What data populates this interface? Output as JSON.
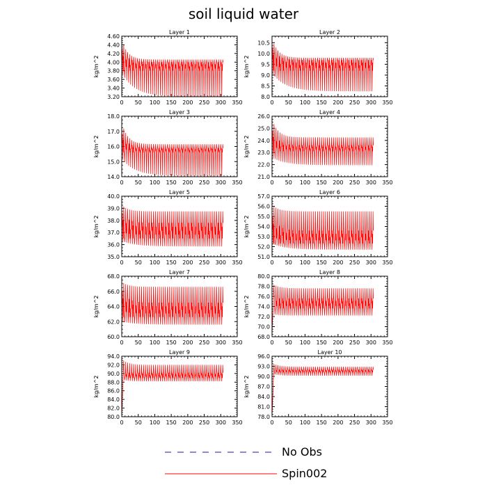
{
  "title": "soil liquid water",
  "legend": [
    {
      "label": "No Obs",
      "color": "#1a1a99",
      "dash": true
    },
    {
      "label": "Spin002",
      "color": "#ff0000",
      "dash": false
    }
  ],
  "chart_data": [
    {
      "type": "line",
      "title": "Layer 1",
      "ylabel": "kg/m^2",
      "xlim": [
        0,
        350
      ],
      "ylim": [
        3.2,
        4.6
      ],
      "yticks": [
        "3.20",
        "3.40",
        "3.60",
        "3.80",
        "4.00",
        "4.20",
        "4.40",
        "4.60"
      ],
      "xticks": [
        "0",
        "50",
        "100",
        "150",
        "200",
        "250",
        "300",
        "350"
      ],
      "series": [
        {
          "name": "Spin002",
          "color": "#ff0000",
          "x_start": 0,
          "x_end": 307,
          "start": 4.52,
          "upper": 4.06,
          "lower": 3.2,
          "mid_hi": 4.0,
          "mid_lo": 3.8,
          "lower_start": 3.75,
          "peak_period": 6
        }
      ]
    },
    {
      "type": "line",
      "title": "Layer 2",
      "ylabel": "kg/m^2",
      "xlim": [
        0,
        350
      ],
      "ylim": [
        8.0,
        10.8
      ],
      "yticks": [
        "8.0",
        "8.5",
        "9.0",
        "9.5",
        "10.0",
        "10.5"
      ],
      "xticks": [
        "0",
        "50",
        "100",
        "150",
        "200",
        "250",
        "300",
        "350"
      ],
      "series": [
        {
          "name": "Spin002",
          "color": "#ff0000",
          "x_start": 0,
          "x_end": 307,
          "start": 10.72,
          "upper": 9.8,
          "lower": 8.25,
          "mid_hi": 9.7,
          "mid_lo": 9.2,
          "lower_start": 9.1,
          "peak_period": 6
        }
      ]
    },
    {
      "type": "line",
      "title": "Layer 3",
      "ylabel": "kg/m^2",
      "xlim": [
        0,
        350
      ],
      "ylim": [
        14.0,
        18.0
      ],
      "yticks": [
        "14.0",
        "15.0",
        "16.0",
        "17.0",
        "18.0"
      ],
      "xticks": [
        "0",
        "50",
        "100",
        "150",
        "200",
        "250",
        "300",
        "350"
      ],
      "series": [
        {
          "name": "Spin002",
          "color": "#ff0000",
          "x_start": 0,
          "x_end": 307,
          "start": 17.6,
          "upper": 16.15,
          "lower": 14.05,
          "mid_hi": 15.9,
          "mid_lo": 15.6,
          "lower_start": 15.2,
          "peak_period": 6
        }
      ]
    },
    {
      "type": "line",
      "title": "Layer 4",
      "ylabel": "kg/m^2",
      "xlim": [
        0,
        350
      ],
      "ylim": [
        21.0,
        26.0
      ],
      "yticks": [
        "21.0",
        "22.0",
        "23.0",
        "24.0",
        "25.0",
        "26.0"
      ],
      "xticks": [
        "0",
        "50",
        "100",
        "150",
        "200",
        "250",
        "300",
        "350"
      ],
      "series": [
        {
          "name": "Spin002",
          "color": "#ff0000",
          "x_start": 0,
          "x_end": 307,
          "start": 25.8,
          "upper": 24.25,
          "lower": 21.95,
          "mid_hi": 23.6,
          "mid_lo": 23.1,
          "lower_start": 22.6,
          "peak_period": 6
        }
      ]
    },
    {
      "type": "line",
      "title": "Layer 5",
      "ylabel": "kg/m^2",
      "xlim": [
        0,
        350
      ],
      "ylim": [
        35.0,
        40.0
      ],
      "yticks": [
        "35.0",
        "36.0",
        "37.0",
        "38.0",
        "39.0",
        "40.0"
      ],
      "xticks": [
        "0",
        "50",
        "100",
        "150",
        "200",
        "250",
        "300",
        "350"
      ],
      "series": [
        {
          "name": "Spin002",
          "color": "#ff0000",
          "x_start": 0,
          "x_end": 307,
          "start": 39.3,
          "upper": 38.75,
          "lower": 35.85,
          "mid_hi": 37.8,
          "mid_lo": 36.5,
          "lower_start": 36.3,
          "peak_period": 6
        }
      ]
    },
    {
      "type": "line",
      "title": "Layer 6",
      "ylabel": "kg/m^2",
      "xlim": [
        0,
        350
      ],
      "ylim": [
        51.0,
        57.0
      ],
      "yticks": [
        "51.0",
        "52.0",
        "53.0",
        "54.0",
        "55.0",
        "56.0",
        "57.0"
      ],
      "xticks": [
        "0",
        "50",
        "100",
        "150",
        "200",
        "250",
        "300",
        "350"
      ],
      "series": [
        {
          "name": "Spin002",
          "color": "#ff0000",
          "x_start": 0,
          "x_end": 307,
          "start": 56.2,
          "upper": 55.5,
          "lower": 51.7,
          "mid_hi": 53.6,
          "mid_lo": 52.3,
          "lower_start": 52.3,
          "peak_period": 6
        }
      ]
    },
    {
      "type": "line",
      "title": "Layer 7",
      "ylabel": "kg/m^2",
      "xlim": [
        0,
        350
      ],
      "ylim": [
        60.0,
        68.0
      ],
      "yticks": [
        "60.0",
        "62.0",
        "64.0",
        "66.0",
        "68.0"
      ],
      "xticks": [
        "0",
        "50",
        "100",
        "150",
        "200",
        "250",
        "300",
        "350"
      ],
      "series": [
        {
          "name": "Spin002",
          "color": "#ff0000",
          "x_start": 0,
          "x_end": 307,
          "start": 67.3,
          "upper": 66.6,
          "lower": 61.6,
          "mid_hi": 64.5,
          "mid_lo": 62.6,
          "lower_start": 62.0,
          "peak_period": 6
        }
      ]
    },
    {
      "type": "line",
      "title": "Layer 8",
      "ylabel": "kg/m^2",
      "xlim": [
        0,
        350
      ],
      "ylim": [
        68.0,
        80.0
      ],
      "yticks": [
        "68.0",
        "70.0",
        "72.0",
        "74.0",
        "76.0",
        "78.0",
        "80.0"
      ],
      "xticks": [
        "0",
        "50",
        "100",
        "150",
        "200",
        "250",
        "300",
        "350"
      ],
      "series": [
        {
          "name": "Spin002",
          "color": "#ff0000",
          "x_start": 0,
          "x_end": 307,
          "start": 68.5,
          "upper": 77.6,
          "lower": 72.2,
          "mid_hi": 75.6,
          "mid_lo": 73.6,
          "lower_start": 72.5,
          "peak_period": 6,
          "ramp": true,
          "ramp_peak": 78.6
        }
      ]
    },
    {
      "type": "line",
      "title": "Layer 9",
      "ylabel": "kg/m^2",
      "xlim": [
        0,
        350
      ],
      "ylim": [
        80.0,
        94.0
      ],
      "yticks": [
        "80.0",
        "82.0",
        "84.0",
        "86.0",
        "88.0",
        "90.0",
        "92.0",
        "94.0"
      ],
      "xticks": [
        "0",
        "50",
        "100",
        "150",
        "200",
        "250",
        "300",
        "350"
      ],
      "series": [
        {
          "name": "Spin002",
          "color": "#ff0000",
          "x_start": 0,
          "x_end": 307,
          "start": 80.0,
          "upper": 92.0,
          "lower": 88.2,
          "mid_hi": 90.2,
          "mid_lo": 89.0,
          "lower_start": 88.6,
          "peak_period": 6,
          "ramp": true,
          "ramp_peak": 93.4
        }
      ]
    },
    {
      "type": "line",
      "title": "Layer 10",
      "ylabel": "kg/m^2",
      "xlim": [
        0,
        350
      ],
      "ylim": [
        78.0,
        96.0
      ],
      "yticks": [
        "78.0",
        "81.0",
        "84.0",
        "87.0",
        "90.0",
        "93.0",
        "96.0"
      ],
      "xticks": [
        "0",
        "50",
        "100",
        "150",
        "200",
        "250",
        "300",
        "350"
      ],
      "series": [
        {
          "name": "Spin002",
          "color": "#ff0000",
          "x_start": 0,
          "x_end": 307,
          "start": 78.0,
          "upper": 92.9,
          "lower": 90.2,
          "mid_hi": 92.0,
          "mid_lo": 91.2,
          "lower_start": 90.8,
          "peak_period": 6,
          "ramp": true,
          "ramp_peak": 94.0
        }
      ]
    }
  ]
}
